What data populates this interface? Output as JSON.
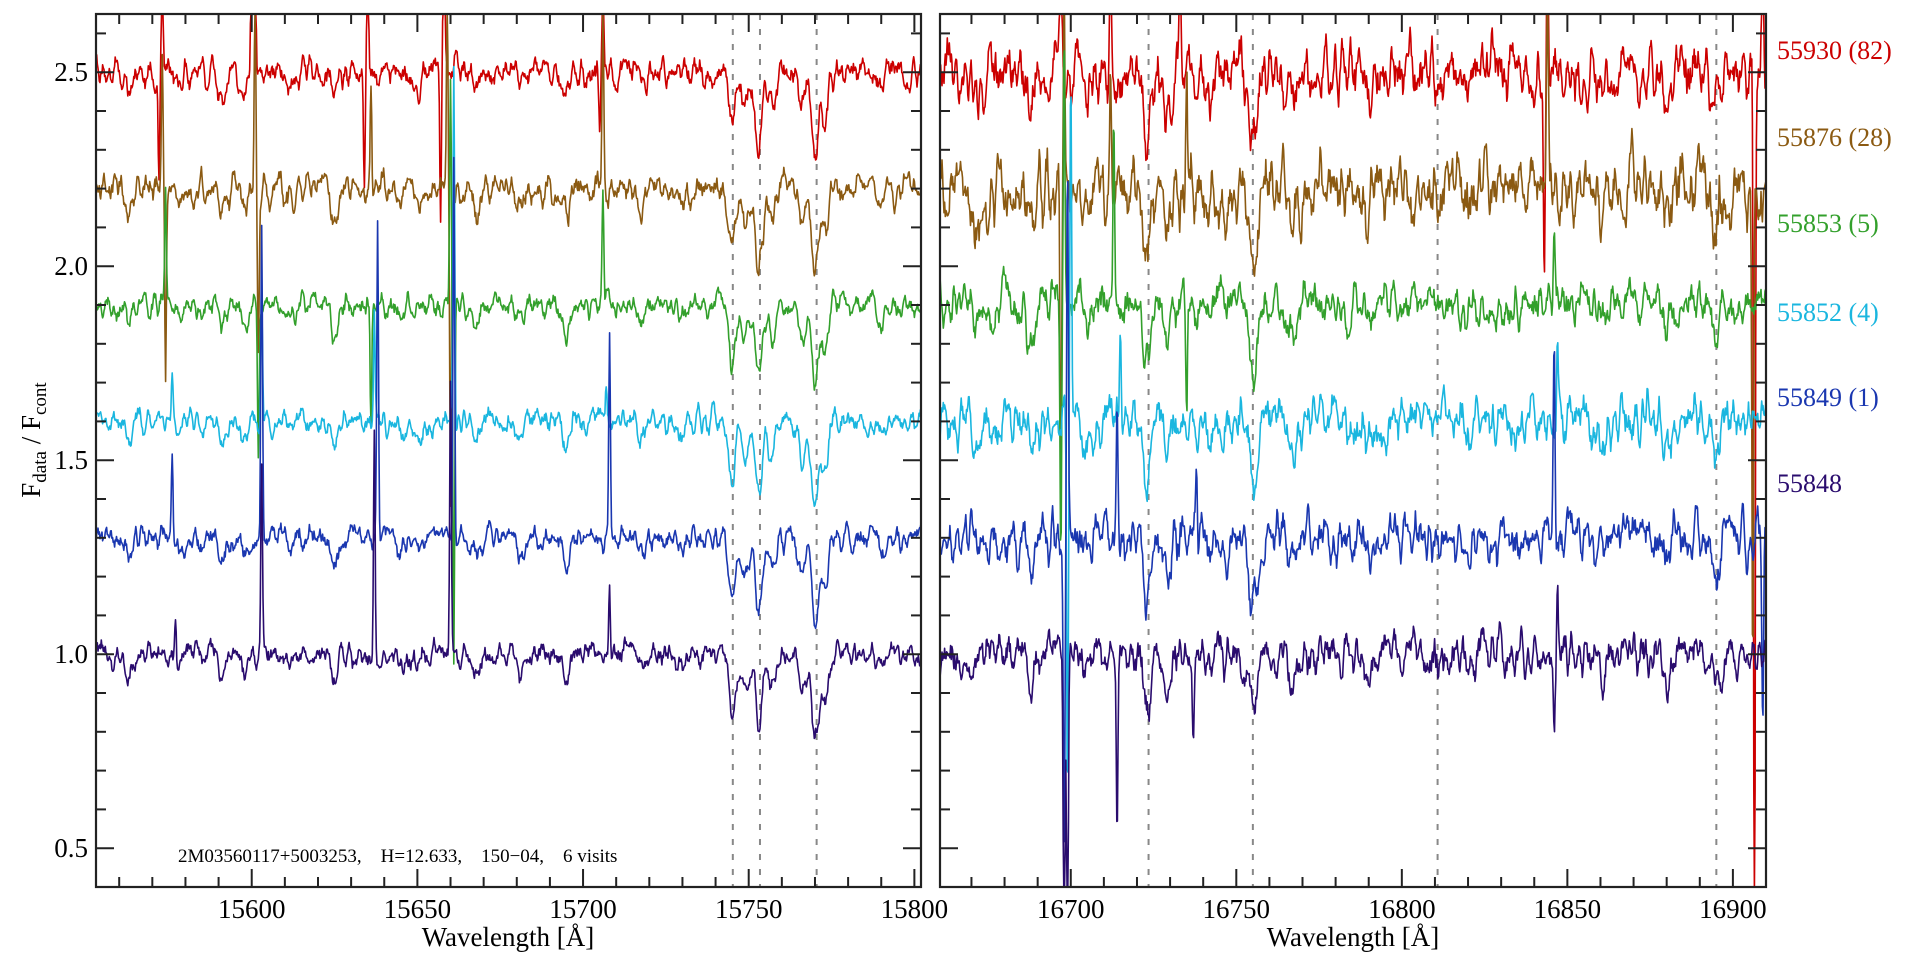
{
  "chart_data": {
    "type": "line",
    "title": "",
    "ylabel": {
      "main": "F",
      "sub1": "data",
      "sep": " / F",
      "sub2": "cont"
    },
    "ylim": [
      0.4,
      2.65
    ],
    "yticks": [
      0.5,
      1.0,
      1.5,
      2.0,
      2.5
    ],
    "ytick_labels": [
      "0.5",
      "1.0",
      "1.5",
      "2.0",
      "2.5"
    ],
    "panels": [
      {
        "xlabel": "Wavelength [Å]",
        "xlim": [
          15553,
          15802
        ],
        "xticks": [
          15600,
          15650,
          15700,
          15750,
          15800
        ],
        "xtick_labels": [
          "15600",
          "15650",
          "15700",
          "15750",
          "15800"
        ],
        "reference_lines": [
          15745.2,
          15753.4,
          15770.5
        ],
        "absorption_lines": [
          [
            15563,
            0.05
          ],
          [
            15578,
            0.04
          ],
          [
            15591,
            0.06
          ],
          [
            15598,
            0.05
          ],
          [
            15612,
            0.03
          ],
          [
            15625,
            0.07
          ],
          [
            15645,
            0.04
          ],
          [
            15650,
            0.04
          ],
          [
            15668,
            0.05
          ],
          [
            15681,
            0.04
          ],
          [
            15695,
            0.07
          ],
          [
            15718,
            0.04
          ],
          [
            15730,
            0.03
          ],
          [
            15745,
            0.15
          ],
          [
            15749,
            0.1
          ],
          [
            15753,
            0.2
          ],
          [
            15757,
            0.08
          ],
          [
            15766,
            0.1
          ],
          [
            15770,
            0.22
          ],
          [
            15773,
            0.12
          ],
          [
            15790,
            0.04
          ]
        ],
        "annotation": "2M03560117+5003253,    H=12.633,    150−04,    6 visits"
      },
      {
        "xlabel": "Wavelength [Å]",
        "xlim": [
          16660.5,
          16910
        ],
        "xticks": [
          16700,
          16750,
          16800,
          16850,
          16900
        ],
        "xtick_labels": [
          "16700",
          "16750",
          "16800",
          "16850",
          "16900"
        ],
        "reference_lines": [
          16723.5,
          16755.0,
          16810.8,
          16895.0
        ],
        "absorption_lines": [
          [
            16672,
            0.05
          ],
          [
            16688,
            0.1
          ],
          [
            16705,
            0.05
          ],
          [
            16723,
            0.16
          ],
          [
            16729,
            0.1
          ],
          [
            16742,
            0.05
          ],
          [
            16755,
            0.18
          ],
          [
            16767,
            0.07
          ],
          [
            16790,
            0.04
          ],
          [
            16820,
            0.04
          ],
          [
            16860,
            0.05
          ],
          [
            16880,
            0.06
          ],
          [
            16895,
            0.09
          ]
        ]
      }
    ],
    "series": [
      {
        "name": "55930 (82)",
        "offset": 2.5,
        "color": "#cc0000",
        "noise": [
          0.03,
          0.06
        ],
        "spikes": [
          [
            [
              15572,
              -0.3
            ],
            [
              15573,
              0.3
            ],
            [
              15600,
              0.5
            ],
            [
              15601,
              0.5
            ],
            [
              15634,
              -0.3
            ],
            [
              15635,
              0.4
            ],
            [
              15657,
              -0.4
            ],
            [
              15658,
              0.5
            ],
            [
              15705,
              -0.15
            ],
            [
              15706,
              0.3
            ]
          ],
          [
            [
              16697,
              0.6
            ],
            [
              16712,
              0.5
            ],
            [
              16733,
              0.3
            ],
            [
              16843,
              -0.5
            ],
            [
              16844,
              0.6
            ],
            [
              16906.5,
              -2.5
            ],
            [
              16909,
              0.6
            ]
          ]
        ]
      },
      {
        "name": "55876 (28)",
        "offset": 2.2,
        "color": "#8b5a12",
        "noise": [
          0.03,
          0.07
        ],
        "spikes": [
          [
            [
              15573,
              0.35
            ],
            [
              15574,
              -0.5
            ],
            [
              15601,
              0.5
            ],
            [
              15602,
              -0.4
            ],
            [
              15636,
              0.3
            ],
            [
              15659,
              0.5
            ],
            [
              15660,
              -0.8
            ],
            [
              15706,
              0.4
            ]
          ],
          [
            [
              16697,
              -0.8
            ],
            [
              16698,
              0.6
            ],
            [
              16712,
              0.4
            ],
            [
              16735,
              0.3
            ],
            [
              16844,
              0.5
            ],
            [
              16906,
              -1.2
            ]
          ]
        ]
      },
      {
        "name": "55853 (5)",
        "offset": 1.9,
        "color": "#33a02c",
        "noise": [
          0.025,
          0.045
        ],
        "spikes": [
          [
            [
              15574,
              0.3
            ],
            [
              15602,
              -0.4
            ],
            [
              15636,
              -0.3
            ],
            [
              15660,
              0.6
            ],
            [
              15661,
              -0.9
            ],
            [
              15706,
              0.3
            ]
          ],
          [
            [
              16697,
              -0.6
            ],
            [
              16698,
              0.7
            ],
            [
              16713,
              0.5
            ],
            [
              16735,
              -0.3
            ],
            [
              16846,
              0.2
            ]
          ]
        ]
      },
      {
        "name": "55852 (4)",
        "offset": 1.6,
        "color": "#1ab6df",
        "noise": [
          0.025,
          0.05
        ],
        "spikes": [
          [
            [
              15576,
              0.12
            ],
            [
              15603,
              0.3
            ],
            [
              15637,
              0.3
            ],
            [
              15661,
              0.9
            ],
            [
              15707,
              0.1
            ]
          ],
          [
            [
              16699,
              -1.0
            ],
            [
              16700,
              0.9
            ],
            [
              16715,
              0.3
            ],
            [
              16847,
              0.2
            ]
          ]
        ]
      },
      {
        "name": "55849 (1)",
        "offset": 1.3,
        "color": "#1a37b0",
        "noise": [
          0.025,
          0.05
        ],
        "spikes": [
          [
            [
              15576,
              0.2
            ],
            [
              15603,
              0.8
            ],
            [
              15638,
              0.8
            ],
            [
              15661,
              1.0
            ],
            [
              15708,
              0.5
            ]
          ],
          [
            [
              16698,
              -0.8
            ],
            [
              16699,
              1.0
            ],
            [
              16714,
              0.3
            ],
            [
              16738,
              0.2
            ],
            [
              16846,
              0.5
            ],
            [
              16909,
              -0.5
            ]
          ]
        ]
      },
      {
        "name": "55848",
        "offset": 1.0,
        "color": "#2a0c6e",
        "noise": [
          0.025,
          0.045
        ],
        "spikes": [
          [
            [
              15577,
              0.12
            ],
            [
              15603,
              0.5
            ],
            [
              15637,
              0.6
            ],
            [
              15660,
              0.7
            ],
            [
              15708,
              0.2
            ]
          ],
          [
            [
              16698,
              -0.9
            ],
            [
              16699,
              -0.9
            ],
            [
              16714,
              -0.45
            ],
            [
              16737,
              -0.2
            ],
            [
              16846,
              -0.15
            ],
            [
              16847,
              0.2
            ]
          ]
        ]
      }
    ]
  }
}
